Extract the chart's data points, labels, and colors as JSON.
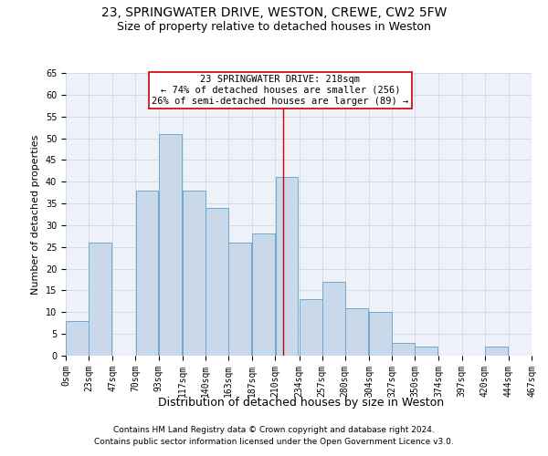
{
  "title1": "23, SPRINGWATER DRIVE, WESTON, CREWE, CW2 5FW",
  "title2": "Size of property relative to detached houses in Weston",
  "xlabel": "Distribution of detached houses by size in Weston",
  "ylabel": "Number of detached properties",
  "footnote1": "Contains HM Land Registry data © Crown copyright and database right 2024.",
  "footnote2": "Contains public sector information licensed under the Open Government Licence v3.0.",
  "bin_labels": [
    "0sqm",
    "23sqm",
    "47sqm",
    "70sqm",
    "93sqm",
    "117sqm",
    "140sqm",
    "163sqm",
    "187sqm",
    "210sqm",
    "234sqm",
    "257sqm",
    "280sqm",
    "304sqm",
    "327sqm",
    "350sqm",
    "374sqm",
    "397sqm",
    "420sqm",
    "444sqm",
    "467sqm"
  ],
  "bin_edges": [
    0,
    23,
    47,
    70,
    93,
    117,
    140,
    163,
    187,
    210,
    234,
    257,
    280,
    304,
    327,
    350,
    374,
    397,
    420,
    444,
    467
  ],
  "counts": [
    8,
    26,
    0,
    38,
    51,
    38,
    34,
    26,
    28,
    41,
    13,
    17,
    11,
    10,
    3,
    2,
    0,
    0,
    2,
    0
  ],
  "bar_color": "#c9d9ea",
  "bar_edge_color": "#6fa8d0",
  "property_size": 218,
  "property_line_color": "#cc0000",
  "annotation_line1": "23 SPRINGWATER DRIVE: 218sqm",
  "annotation_line2": "← 74% of detached houses are smaller (256)",
  "annotation_line3": "26% of semi-detached houses are larger (89) →",
  "annotation_box_color": "#ffffff",
  "annotation_box_edge": "#cc0000",
  "ylim": [
    0,
    65
  ],
  "yticks": [
    0,
    5,
    10,
    15,
    20,
    25,
    30,
    35,
    40,
    45,
    50,
    55,
    60,
    65
  ],
  "grid_color": "#d0d8e8",
  "bg_color": "#eef2f8",
  "title1_fontsize": 10,
  "title2_fontsize": 9,
  "axis_label_fontsize": 8,
  "tick_fontsize": 7,
  "footnote_fontsize": 6.5,
  "annotation_fontsize": 7.5
}
